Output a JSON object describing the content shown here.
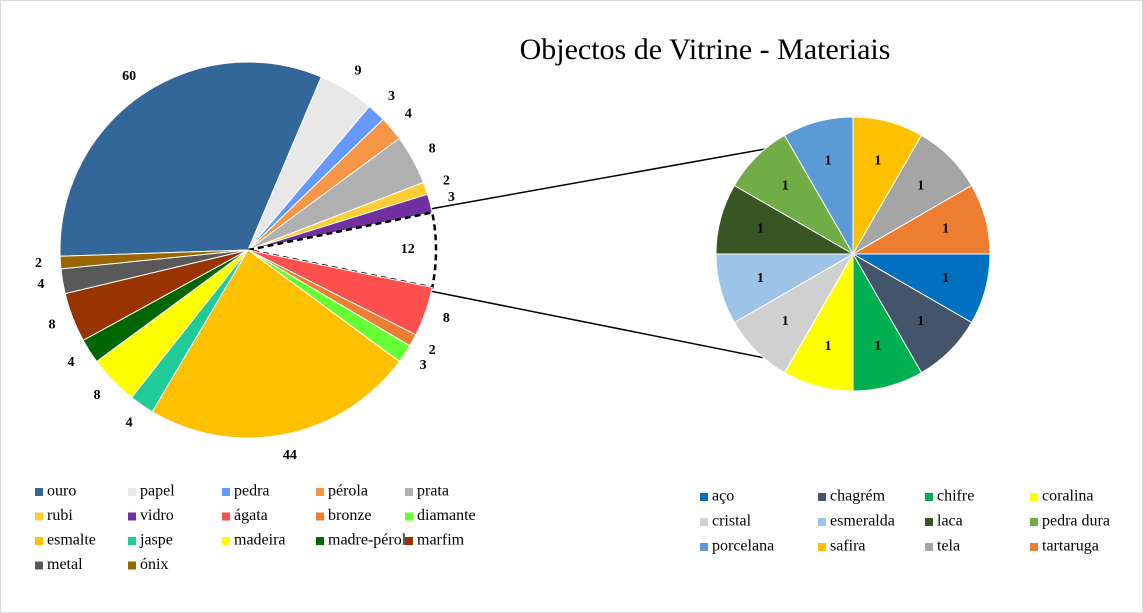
{
  "chart_data": [
    {
      "type": "pie",
      "title": "Objectos de Vitrine - Materiais",
      "categories": [
        "ouro",
        "papel",
        "pedra",
        "pérola",
        "prata",
        "rubi",
        "vidro",
        null,
        "ágata",
        "bronze",
        "diamante",
        "esmalte",
        "jaspe",
        "madeira",
        "madre-pérola",
        "marfim",
        "metal",
        "ónix"
      ],
      "values": [
        60,
        9,
        3,
        4,
        8,
        2,
        3,
        12,
        8,
        2,
        3,
        44,
        4,
        8,
        4,
        8,
        4,
        2
      ],
      "colors": [
        "#336699",
        "#e8e8e8",
        "#6699ff",
        "#f79646",
        "#b0b0b0",
        "#ffcc33",
        "#7030a0",
        "#ffffff",
        "#ff5050",
        "#ed7d31",
        "#66ff33",
        "#ffc000",
        "#1fcc99",
        "#ffff00",
        "#006600",
        "#993300",
        "#595959",
        "#996600"
      ]
    },
    {
      "type": "pie",
      "categories": [
        "aço",
        "chagrém",
        "chifre",
        "coralina",
        "cristal",
        "esmeralda",
        "laca",
        "pedra dura",
        "porcelana",
        "safira",
        "tela",
        "tartaruga"
      ],
      "values": [
        1,
        1,
        1,
        1,
        1,
        1,
        1,
        1,
        1,
        1,
        1,
        1
      ],
      "colors": [
        "#0070c0",
        "#44546a",
        "#00b050",
        "#ffff00",
        "#d0d0d0",
        "#9dc3e6",
        "#375623",
        "#70ad47",
        "#5b9bd5",
        "#ffc000",
        "#a5a5a5",
        "#ed7d31"
      ]
    }
  ]
}
